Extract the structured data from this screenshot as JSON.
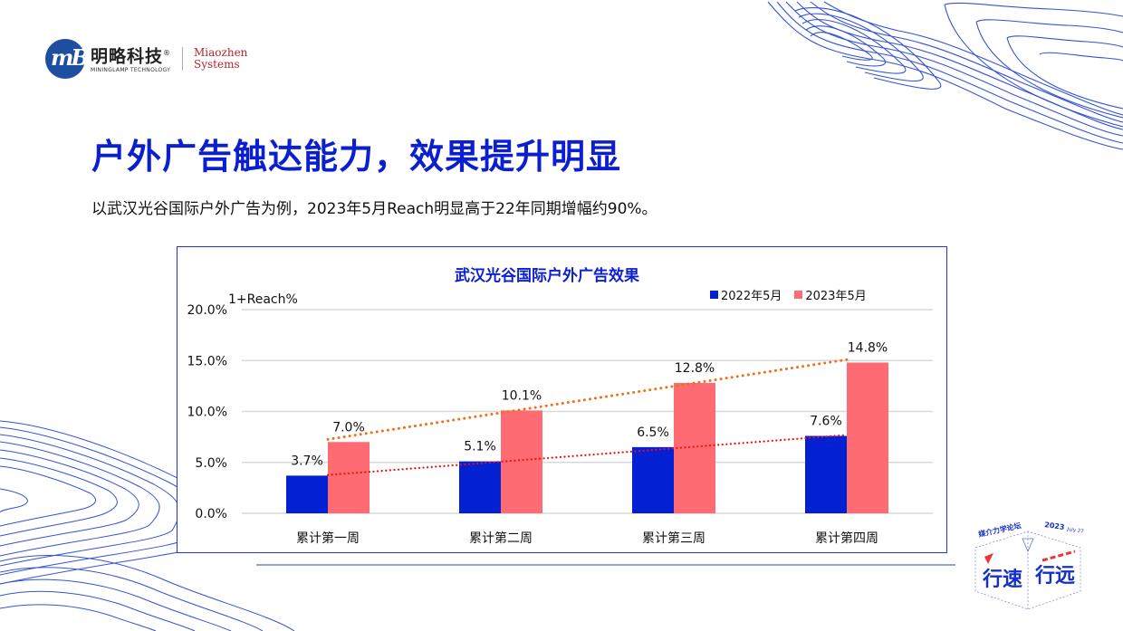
{
  "brand": {
    "company_cn": "明略科技",
    "registered_mark": "®",
    "company_en": "MININGLAMP TECHNOLOGY",
    "partner_line1": "Miaozhen",
    "partner_line2": "Systems",
    "logo_icon": "mininglamp-logo-icon"
  },
  "header": {
    "title": "户外广告触达能力，效果提升明显",
    "subtitle": "以武汉光谷国际户外广告为例，2023年5月Reach明显高于22年同期增幅约90%。"
  },
  "event_badge": {
    "label": "媒介力学论坛",
    "year": "2023",
    "date": "July 27",
    "slogan_left": "行速",
    "slogan_right": "行远"
  },
  "colors": {
    "title_blue": "#0b1fd0",
    "series_2022": "#0320d2",
    "series_2023": "#ff6b72",
    "trend_2022": "#ee1111",
    "trend_2023": "#f07015",
    "decor_lines": "#3452d6"
  },
  "chart_data": {
    "type": "bar",
    "title": "武汉光谷国际户外广告效果",
    "xlabel": "",
    "ylabel": "1+Reach%",
    "ylim": [
      0,
      20
    ],
    "yticks": [
      "0.0%",
      "5.0%",
      "10.0%",
      "15.0%",
      "20.0%"
    ],
    "grid": true,
    "legend_position": "top-right",
    "categories": [
      "累计第一周",
      "累计第二周",
      "累计第三周",
      "累计第四周"
    ],
    "series": [
      {
        "name": "2022年5月",
        "values": [
          3.7,
          5.1,
          6.5,
          7.6
        ],
        "labels": [
          "3.7%",
          "5.1%",
          "6.5%",
          "7.6%"
        ],
        "color": "#0320d2",
        "trendline": "linear dotted red"
      },
      {
        "name": "2023年5月",
        "values": [
          7.0,
          10.1,
          12.8,
          14.8
        ],
        "labels": [
          "7.0%",
          "10.1%",
          "12.8%",
          "14.8%"
        ],
        "color": "#ff6b72",
        "trendline": "linear dotted orange"
      }
    ]
  }
}
